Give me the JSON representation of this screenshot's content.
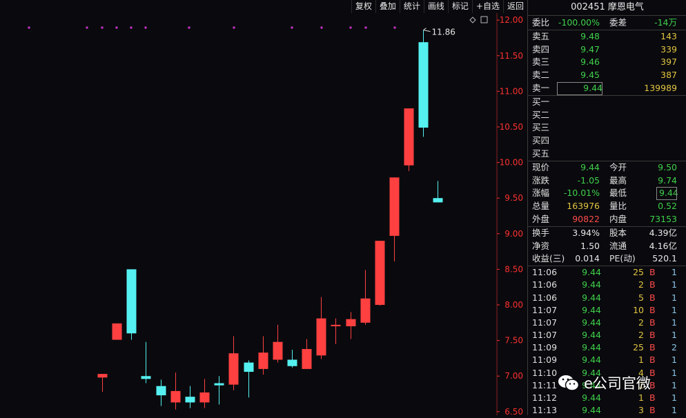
{
  "toolbar": {
    "items": [
      "复权",
      "叠加",
      "统计",
      "画线",
      "标记",
      "+自选",
      "返回"
    ]
  },
  "chart_data": {
    "type": "candlestick",
    "ylim": [
      6.45,
      12.05
    ],
    "y_ticks": [
      "12.00",
      "11.50",
      "11.00",
      "10.50",
      "10.00",
      "9.50",
      "9.00",
      "8.50",
      "8.00",
      "7.50",
      "7.00",
      "6.50"
    ],
    "max_label": "11.86",
    "candles": [
      {
        "open": 6.98,
        "close": 7.03,
        "high": 7.03,
        "low": 6.78
      },
      {
        "open": 7.51,
        "close": 7.74,
        "high": 7.74,
        "low": 7.51
      },
      {
        "open": 8.5,
        "close": 7.6,
        "high": 8.5,
        "low": 7.51
      },
      {
        "open": 7.0,
        "close": 6.96,
        "high": 7.48,
        "low": 6.9
      },
      {
        "open": 6.86,
        "close": 6.73,
        "high": 6.95,
        "low": 6.58
      },
      {
        "open": 6.63,
        "close": 6.79,
        "high": 7.05,
        "low": 6.53
      },
      {
        "open": 6.71,
        "close": 6.63,
        "high": 6.86,
        "low": 6.55
      },
      {
        "open": 6.63,
        "close": 6.77,
        "high": 6.96,
        "low": 6.55
      },
      {
        "open": 6.9,
        "close": 6.87,
        "high": 7.0,
        "low": 6.6
      },
      {
        "open": 6.88,
        "close": 7.32,
        "high": 7.56,
        "low": 6.8
      },
      {
        "open": 7.19,
        "close": 7.06,
        "high": 7.22,
        "low": 6.7
      },
      {
        "open": 7.1,
        "close": 7.33,
        "high": 7.56,
        "low": 7.02
      },
      {
        "open": 7.23,
        "close": 7.48,
        "high": 7.72,
        "low": 7.19
      },
      {
        "open": 7.23,
        "close": 7.14,
        "high": 7.37,
        "low": 7.12
      },
      {
        "open": 7.1,
        "close": 7.38,
        "high": 7.52,
        "low": 7.1
      },
      {
        "open": 7.29,
        "close": 7.81,
        "high": 8.11,
        "low": 7.24
      },
      {
        "open": 7.72,
        "close": 7.72,
        "high": 7.81,
        "low": 7.45
      },
      {
        "open": 7.7,
        "close": 7.8,
        "high": 7.9,
        "low": 7.52
      },
      {
        "open": 7.75,
        "close": 8.09,
        "high": 8.49,
        "low": 7.72
      },
      {
        "open": 8.0,
        "close": 8.9,
        "high": 8.9,
        "low": 7.99
      },
      {
        "open": 8.97,
        "close": 9.79,
        "high": 9.79,
        "low": 8.61
      },
      {
        "open": 9.96,
        "close": 10.76,
        "high": 10.76,
        "low": 9.88
      },
      {
        "open": 11.69,
        "close": 10.49,
        "high": 11.86,
        "low": 10.36
      },
      {
        "open": 9.5,
        "close": 9.44,
        "high": 9.74,
        "low": 9.44
      }
    ]
  },
  "stock": {
    "title": "002451 摩恩电气"
  },
  "order_book": {
    "weibi_label": "委比",
    "weibi_value": "-100.00%",
    "weicha_label": "委差",
    "weicha_value": "-14万",
    "asks": [
      {
        "label": "卖五",
        "price": "9.48",
        "vol": "143"
      },
      {
        "label": "卖四",
        "price": "9.47",
        "vol": "339"
      },
      {
        "label": "卖三",
        "price": "9.46",
        "vol": "397"
      },
      {
        "label": "卖二",
        "price": "9.45",
        "vol": "387"
      },
      {
        "label": "卖一",
        "price": "9.44",
        "vol": "139989"
      }
    ],
    "bids": [
      {
        "label": "买一"
      },
      {
        "label": "买二"
      },
      {
        "label": "买三"
      },
      {
        "label": "买四"
      },
      {
        "label": "买五"
      }
    ]
  },
  "quote": [
    {
      "l1": "现价",
      "v1": "9.44",
      "l2": "今开",
      "v2": "9.50"
    },
    {
      "l1": "涨跌",
      "v1": "-1.05",
      "l2": "最高",
      "v2": "9.74"
    },
    {
      "l1": "涨幅",
      "v1": "-10.01%",
      "l2": "最低",
      "v2": "9.44"
    },
    {
      "l1": "总量",
      "v1": "163976",
      "l2": "量比",
      "v2": "0.52"
    },
    {
      "l1": "外盘",
      "v1": "90822",
      "l2": "内盘",
      "v2": "73153"
    }
  ],
  "fundamentals": [
    {
      "l1": "换手",
      "v1": "3.94%",
      "l2": "股本",
      "v2": "4.39亿"
    },
    {
      "l1": "净资",
      "v1": "1.50",
      "l2": "流通",
      "v2": "4.16亿"
    },
    {
      "l1": "收益(三)",
      "v1": "0.014",
      "l2": "PE(动)",
      "v2": "520.1"
    }
  ],
  "ticks": [
    {
      "time": "11:06",
      "price": "9.44",
      "vol": "25",
      "bs": "B",
      "n": "1"
    },
    {
      "time": "11:06",
      "price": "9.44",
      "vol": "2",
      "bs": "B",
      "n": "1"
    },
    {
      "time": "11:06",
      "price": "9.44",
      "vol": "5",
      "bs": "B",
      "n": "1"
    },
    {
      "time": "11:07",
      "price": "9.44",
      "vol": "10",
      "bs": "B",
      "n": "1"
    },
    {
      "time": "11:07",
      "price": "9.44",
      "vol": "2",
      "bs": "B",
      "n": "1"
    },
    {
      "time": "11:07",
      "price": "9.44",
      "vol": "2",
      "bs": "B",
      "n": "1"
    },
    {
      "time": "11:09",
      "price": "9.44",
      "vol": "25",
      "bs": "B",
      "n": "2"
    },
    {
      "time": "11:09",
      "price": "9.44",
      "vol": "1",
      "bs": "B",
      "n": "1"
    },
    {
      "time": "11:10",
      "price": "9.44",
      "vol": "4",
      "bs": "B",
      "n": "1"
    },
    {
      "time": "11:11",
      "price": "9.44",
      "vol": "2",
      "bs": "B",
      "n": "1"
    },
    {
      "time": "11:12",
      "price": "9.44",
      "vol": "1",
      "bs": "B",
      "n": "1"
    },
    {
      "time": "11:13",
      "price": "9.44",
      "vol": "3",
      "bs": "B",
      "n": "1"
    }
  ],
  "watermark": {
    "text": "e公司官微"
  },
  "colors": {
    "up": "#ff4040",
    "down": "#55f0f0",
    "axis": "#ff3030",
    "marker": "#cc33cc",
    "ask_vol": "#e2c541",
    "green": "#3fd04a"
  }
}
